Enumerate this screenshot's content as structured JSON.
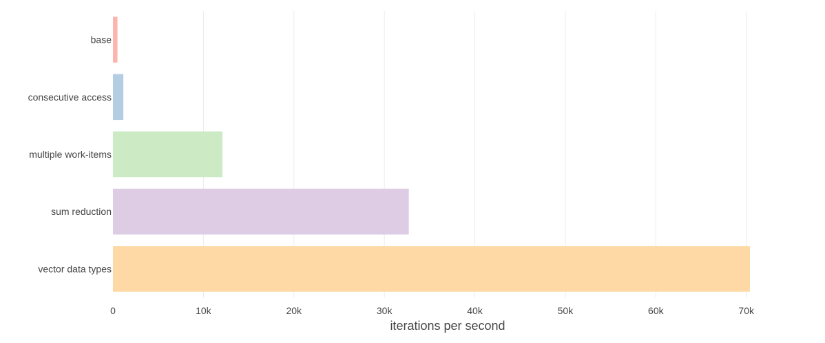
{
  "chart_data": {
    "type": "bar",
    "orientation": "horizontal",
    "categories": [
      "base",
      "consecutive access",
      "multiple work-items",
      "sum reduction",
      "vector data types"
    ],
    "values": [
      500,
      1150,
      12100,
      32700,
      70400
    ],
    "colors": [
      "#fbb4ae",
      "#b3cde3",
      "#ccebc5",
      "#decbe4",
      "#fed9a6"
    ],
    "xlabel": "iterations per second",
    "ylabel": "",
    "xlim": [
      0,
      72000
    ],
    "xticks": [
      0,
      10000,
      20000,
      30000,
      40000,
      50000,
      60000,
      70000
    ],
    "xtick_labels": [
      "0",
      "10k",
      "20k",
      "30k",
      "40k",
      "50k",
      "60k",
      "70k"
    ],
    "grid": true,
    "legend": "none"
  }
}
